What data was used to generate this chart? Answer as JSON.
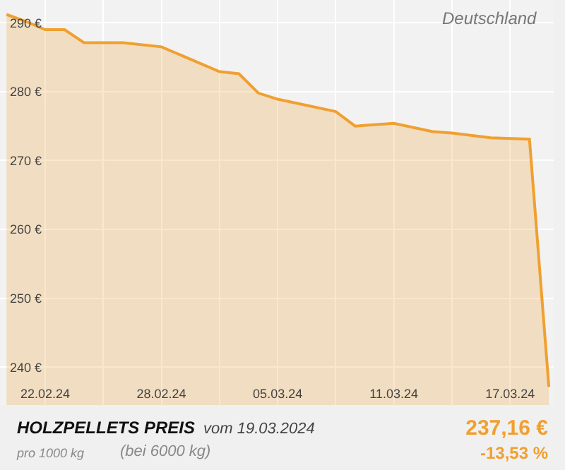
{
  "chart_data": {
    "type": "area",
    "title": "HOLZPELLETS PREIS",
    "subtitle": "vom 19.03.2024",
    "annotations": [
      "Deutschland",
      "pro 1000 kg",
      "(bei 6000 kg)",
      "237,16 €",
      "-13,53 %"
    ],
    "x": [
      "2024-02-20",
      "2024-02-21",
      "2024-02-22",
      "2024-02-23",
      "2024-02-24",
      "2024-02-26",
      "2024-02-28",
      "2024-03-02",
      "2024-03-03",
      "2024-03-04",
      "2024-03-05",
      "2024-03-08",
      "2024-03-09",
      "2024-03-11",
      "2024-03-13",
      "2024-03-14",
      "2024-03-16",
      "2024-03-18",
      "2024-03-19"
    ],
    "series": [
      {
        "color": "#f0a030",
        "values": [
          291.2,
          290.2,
          289.0,
          289.0,
          287.1,
          287.1,
          286.5,
          282.9,
          282.6,
          279.8,
          278.9,
          277.1,
          275.0,
          275.4,
          274.2,
          274.0,
          273.3,
          273.1,
          237.16
        ]
      }
    ],
    "xlim": [
      "2024-02-19T16:00",
      "2024-03-19T06:00"
    ],
    "xticks": [
      {
        "value": "2024-02-22",
        "label": "22.02.24"
      },
      {
        "value": "2024-02-25",
        "label": null
      },
      {
        "value": "2024-02-28",
        "label": "28.02.24"
      },
      {
        "value": "2024-03-02",
        "label": null
      },
      {
        "value": "2024-03-05",
        "label": "05.03.24"
      },
      {
        "value": "2024-03-08",
        "label": null
      },
      {
        "value": "2024-03-11",
        "label": "11.03.24"
      },
      {
        "value": "2024-03-14",
        "label": null
      },
      {
        "value": "2024-03-17",
        "label": "17.03.24"
      }
    ],
    "ylim": [
      234.5,
      293.3
    ],
    "yticks": [
      {
        "value": 240,
        "label": "240 €"
      },
      {
        "value": 250,
        "label": "250 €"
      },
      {
        "value": 260,
        "label": "260 €"
      },
      {
        "value": 270,
        "label": "270 €"
      },
      {
        "value": 280,
        "label": "280 €"
      },
      {
        "value": 290,
        "label": "290 €"
      }
    ],
    "grid": true,
    "legend": false,
    "marker": "none",
    "line_style": "solid"
  }
}
